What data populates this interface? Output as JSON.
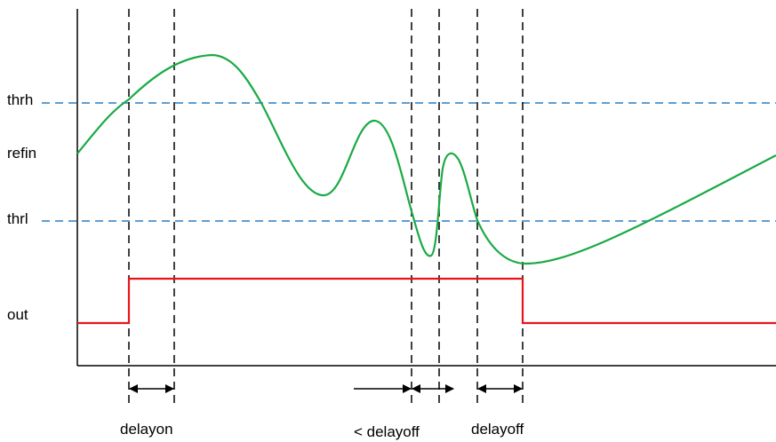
{
  "labels": {
    "thrh": "thrh",
    "refin": "refin",
    "thrl": "thrl",
    "out": "out"
  },
  "annotations": {
    "delayon": "delayon",
    "less_delayoff": "< delayoff",
    "delayoff": "delayoff"
  },
  "colors": {
    "signal": "#1aaa45",
    "output": "#e8141b",
    "threshold": "#2a7fc1",
    "axis": "#000000"
  }
}
